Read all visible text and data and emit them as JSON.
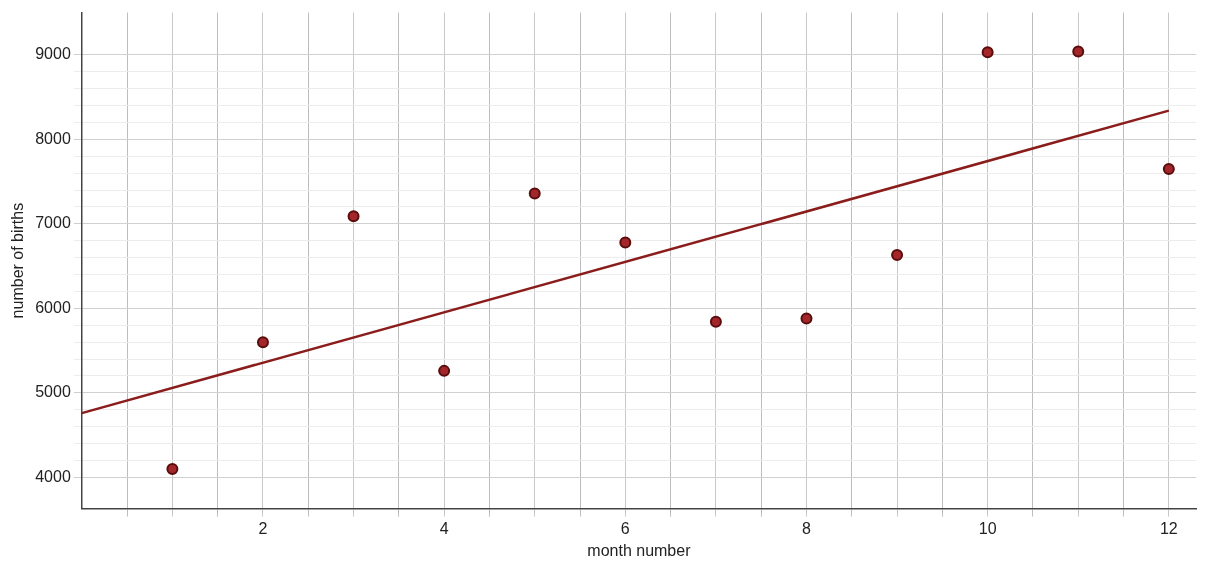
{
  "chart_data": {
    "type": "scatter",
    "xlabel": "month number",
    "ylabel": "number of births",
    "x": [
      1,
      2,
      3,
      4,
      5,
      6,
      7,
      8,
      9,
      10,
      11,
      12
    ],
    "series": [
      {
        "color": "#a3262a",
        "values": [
          4100,
          5600,
          7090,
          5260,
          7360,
          6780,
          5840,
          5880,
          6630,
          9030,
          9040,
          7650
        ]
      },
      {
        "type": "line",
        "marker": "none",
        "color": "#8b1c1c",
        "x": [
          0,
          12
        ],
        "values": [
          4760,
          8340
        ]
      }
    ],
    "xlim": [
      0,
      12.3
    ],
    "ylim": [
      3630,
      9500
    ],
    "xticks": [
      {
        "value": 0.5,
        "label": null
      },
      {
        "value": 1,
        "label": null
      },
      {
        "value": 1.5,
        "label": null
      },
      2,
      {
        "value": 2.5,
        "label": null
      },
      {
        "value": 3,
        "label": null
      },
      {
        "value": 3.5,
        "label": null
      },
      4,
      {
        "value": 4.5,
        "label": null
      },
      {
        "value": 5,
        "label": null
      },
      {
        "value": 5.5,
        "label": null
      },
      6,
      {
        "value": 6.5,
        "label": null
      },
      {
        "value": 7,
        "label": null
      },
      {
        "value": 7.5,
        "label": null
      },
      8,
      {
        "value": 8.5,
        "label": null
      },
      {
        "value": 9,
        "label": null
      },
      {
        "value": 9.5,
        "label": null
      },
      10,
      {
        "value": 10.5,
        "label": null
      },
      {
        "value": 11,
        "label": null
      },
      {
        "value": 11.5,
        "label": null
      },
      12
    ],
    "yticks": [
      4000,
      {
        "value": 4200,
        "label": null
      },
      {
        "value": 4400,
        "label": null
      },
      {
        "value": 4600,
        "label": null
      },
      {
        "value": 4800,
        "label": null
      },
      5000,
      {
        "value": 5200,
        "label": null
      },
      {
        "value": 5400,
        "label": null
      },
      {
        "value": 5600,
        "label": null
      },
      {
        "value": 5800,
        "label": null
      },
      6000,
      {
        "value": 6200,
        "label": null
      },
      {
        "value": 6400,
        "label": null
      },
      {
        "value": 6600,
        "label": null
      },
      {
        "value": 6800,
        "label": null
      },
      7000,
      {
        "value": 7200,
        "label": null
      },
      {
        "value": 7400,
        "label": null
      },
      {
        "value": 7600,
        "label": null
      },
      {
        "value": 7800,
        "label": null
      },
      8000,
      {
        "value": 8200,
        "label": null
      },
      {
        "value": 8400,
        "label": null
      },
      {
        "value": 8600,
        "label": null
      },
      {
        "value": 8800,
        "label": null
      },
      9000
    ],
    "grid": true,
    "marker": "circle",
    "legend": false
  }
}
